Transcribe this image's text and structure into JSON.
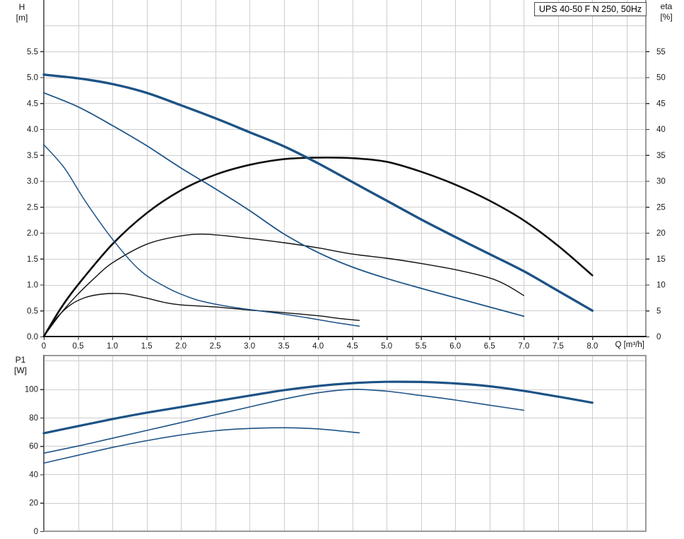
{
  "title_box": {
    "text": "UPS 40-50 F N 250, 50Hz"
  },
  "axis_labels": {
    "h": "H",
    "m": "[m]",
    "eta": "eta",
    "pct": "[%]",
    "p1": "P1",
    "w": "[W]",
    "q": "Q [m³/h]"
  },
  "colors": {
    "blue": "#1d5386",
    "black": "#0f0f0f",
    "grid": "#cdcdcd",
    "frame": "#9a9a9a",
    "axis_left": "#6e6e6e",
    "axis_bottom_dark": "#1a1a1a",
    "tick": "#333333",
    "text": "#1a1a1a"
  },
  "chart_data": [
    {
      "id": "head-efficiency-chart",
      "type": "line",
      "title": "UPS 40-50 F N 250, 50Hz",
      "x": {
        "label": "Q [m³/h]",
        "min": 0,
        "max": 8.79,
        "grid_step": 0.5,
        "tick_labels": [
          "0",
          "0.5",
          "1.0",
          "1.5",
          "2.0",
          "2.5",
          "3.0",
          "3.5",
          "4.0",
          "4.5",
          "5.0",
          "5.5",
          "6.0",
          "6.5",
          "7.0",
          "7.5",
          "8.0"
        ]
      },
      "y_left": {
        "label": "H [m]",
        "min": 0,
        "max": 6.49,
        "grid_step": 0.5,
        "tick_labels": [
          "0.0",
          "0.5",
          "1.0",
          "1.5",
          "2.0",
          "2.5",
          "3.0",
          "3.5",
          "4.0",
          "4.5",
          "5.0",
          "5.5"
        ]
      },
      "y_right": {
        "label": "eta [%]",
        "min": 0,
        "max": 64.9,
        "tick_labels": [
          "0",
          "5",
          "10",
          "15",
          "20",
          "25",
          "30",
          "35",
          "40",
          "45",
          "50",
          "55"
        ]
      },
      "series": [
        {
          "name": "efficiency-curve-speed1",
          "axis": "right",
          "color": "black",
          "width": 1.4,
          "points": [
            [
              0,
              0
            ],
            [
              0.2,
              3.8
            ],
            [
              0.4,
              6.2
            ],
            [
              0.6,
              7.5
            ],
            [
              0.8,
              8.1
            ],
            [
              1,
              8.3
            ],
            [
              1.2,
              8.2
            ],
            [
              1.5,
              7.4
            ],
            [
              1.75,
              6.6
            ],
            [
              2,
              6.1
            ],
            [
              2.5,
              5.7
            ],
            [
              3,
              5.1
            ],
            [
              3.5,
              4.6
            ],
            [
              4,
              4.0
            ],
            [
              4.3,
              3.5
            ],
            [
              4.6,
              3.1
            ]
          ]
        },
        {
          "name": "efficiency-curve-speed2",
          "axis": "right",
          "color": "black",
          "width": 1.4,
          "points": [
            [
              0,
              0
            ],
            [
              0.25,
              4.5
            ],
            [
              0.5,
              8.2
            ],
            [
              0.75,
              11.4
            ],
            [
              1,
              14.2
            ],
            [
              1.5,
              17.8
            ],
            [
              2,
              19.4
            ],
            [
              2.4,
              19.7
            ],
            [
              3,
              18.9
            ],
            [
              3.5,
              18.1
            ],
            [
              4,
              17.1
            ],
            [
              4.5,
              15.9
            ],
            [
              5,
              15.1
            ],
            [
              5.5,
              14.1
            ],
            [
              6,
              12.9
            ],
            [
              6.5,
              11.3
            ],
            [
              6.75,
              9.9
            ],
            [
              7,
              7.9
            ]
          ]
        },
        {
          "name": "efficiency-curve-speed3",
          "axis": "right",
          "color": "black",
          "width": 2.6,
          "points": [
            [
              0,
              0
            ],
            [
              0.25,
              5.5
            ],
            [
              0.5,
              10
            ],
            [
              1,
              17.8
            ],
            [
              1.5,
              23.8
            ],
            [
              2,
              28.2
            ],
            [
              2.5,
              31.2
            ],
            [
              3,
              33.1
            ],
            [
              3.5,
              34.2
            ],
            [
              4,
              34.5
            ],
            [
              4.5,
              34.4
            ],
            [
              5,
              33.7
            ],
            [
              5.5,
              31.8
            ],
            [
              6,
              29.3
            ],
            [
              6.5,
              26.2
            ],
            [
              7,
              22.4
            ],
            [
              7.5,
              17.5
            ],
            [
              8,
              11.8
            ]
          ]
        },
        {
          "name": "head-curve-speed1",
          "axis": "left",
          "color": "blue",
          "width": 1.5,
          "points": [
            [
              0,
              3.7
            ],
            [
              0.3,
              3.25
            ],
            [
              0.6,
              2.62
            ],
            [
              1,
              1.88
            ],
            [
              1.4,
              1.28
            ],
            [
              1.8,
              0.94
            ],
            [
              2.2,
              0.72
            ],
            [
              2.6,
              0.6
            ],
            [
              3,
              0.52
            ],
            [
              3.4,
              0.45
            ],
            [
              3.8,
              0.37
            ],
            [
              4.2,
              0.28
            ],
            [
              4.6,
              0.2
            ]
          ]
        },
        {
          "name": "head-curve-speed2",
          "axis": "left",
          "color": "blue",
          "width": 1.8,
          "points": [
            [
              0,
              4.7
            ],
            [
              0.5,
              4.43
            ],
            [
              1,
              4.07
            ],
            [
              1.5,
              3.68
            ],
            [
              2,
              3.25
            ],
            [
              2.5,
              2.85
            ],
            [
              3,
              2.43
            ],
            [
              3.5,
              1.98
            ],
            [
              4,
              1.62
            ],
            [
              4.5,
              1.34
            ],
            [
              5,
              1.12
            ],
            [
              5.5,
              0.93
            ],
            [
              6,
              0.75
            ],
            [
              6.5,
              0.57
            ],
            [
              7,
              0.39
            ]
          ]
        },
        {
          "name": "head-curve-speed3",
          "axis": "left",
          "color": "blue",
          "width": 3.4,
          "points": [
            [
              0,
              5.05
            ],
            [
              0.5,
              4.98
            ],
            [
              1,
              4.87
            ],
            [
              1.5,
              4.7
            ],
            [
              2,
              4.46
            ],
            [
              2.5,
              4.21
            ],
            [
              3,
              3.94
            ],
            [
              3.5,
              3.67
            ],
            [
              4,
              3.34
            ],
            [
              4.5,
              2.98
            ],
            [
              5,
              2.62
            ],
            [
              5.5,
              2.26
            ],
            [
              6,
              1.92
            ],
            [
              6.5,
              1.59
            ],
            [
              7,
              1.26
            ],
            [
              7.5,
              0.88
            ],
            [
              8,
              0.5
            ]
          ]
        }
      ]
    },
    {
      "id": "power-chart",
      "type": "line",
      "title": "",
      "x": {
        "label": "",
        "min": 0,
        "max": 8.79,
        "grid_step": 0.5,
        "tick_labels": []
      },
      "y_left": {
        "label": "P1 [W]",
        "min": 0,
        "max": 124.2,
        "grid_step": 20,
        "tick_labels": [
          "0",
          "20",
          "40",
          "60",
          "80",
          "100"
        ]
      },
      "y_right": {
        "label": "",
        "min": 0,
        "max": 0,
        "tick_labels": []
      },
      "series": [
        {
          "name": "power-curve-speed1",
          "axis": "left",
          "color": "blue",
          "width": 1.6,
          "points": [
            [
              0,
              48
            ],
            [
              0.5,
              53.5
            ],
            [
              1,
              59
            ],
            [
              1.5,
              63.8
            ],
            [
              2,
              67.8
            ],
            [
              2.5,
              70.8
            ],
            [
              3,
              72.4
            ],
            [
              3.5,
              72.9
            ],
            [
              4,
              72.1
            ],
            [
              4.6,
              69.3
            ]
          ]
        },
        {
          "name": "power-curve-speed2",
          "axis": "left",
          "color": "blue",
          "width": 1.6,
          "points": [
            [
              0,
              55
            ],
            [
              0.5,
              60
            ],
            [
              1,
              65.5
            ],
            [
              1.5,
              71
            ],
            [
              2,
              76.5
            ],
            [
              2.5,
              82
            ],
            [
              3,
              87.5
            ],
            [
              3.5,
              93
            ],
            [
              4,
              97.5
            ],
            [
              4.5,
              99.9
            ],
            [
              5,
              98.6
            ],
            [
              5.5,
              95.6
            ],
            [
              6,
              92.4
            ],
            [
              6.5,
              88.8
            ],
            [
              7,
              85.2
            ]
          ]
        },
        {
          "name": "power-curve-speed3",
          "axis": "left",
          "color": "blue",
          "width": 3.2,
          "points": [
            [
              0,
              69
            ],
            [
              0.5,
              74
            ],
            [
              1,
              79
            ],
            [
              1.5,
              83.5
            ],
            [
              2,
              87.5
            ],
            [
              2.5,
              91.5
            ],
            [
              3,
              95.5
            ],
            [
              3.5,
              99.3
            ],
            [
              4,
              102.3
            ],
            [
              4.5,
              104.3
            ],
            [
              5,
              105.2
            ],
            [
              5.5,
              105.1
            ],
            [
              6,
              104.1
            ],
            [
              6.5,
              102.1
            ],
            [
              7,
              98.8
            ],
            [
              7.5,
              94.8
            ],
            [
              8,
              90.5
            ]
          ]
        }
      ]
    }
  ]
}
